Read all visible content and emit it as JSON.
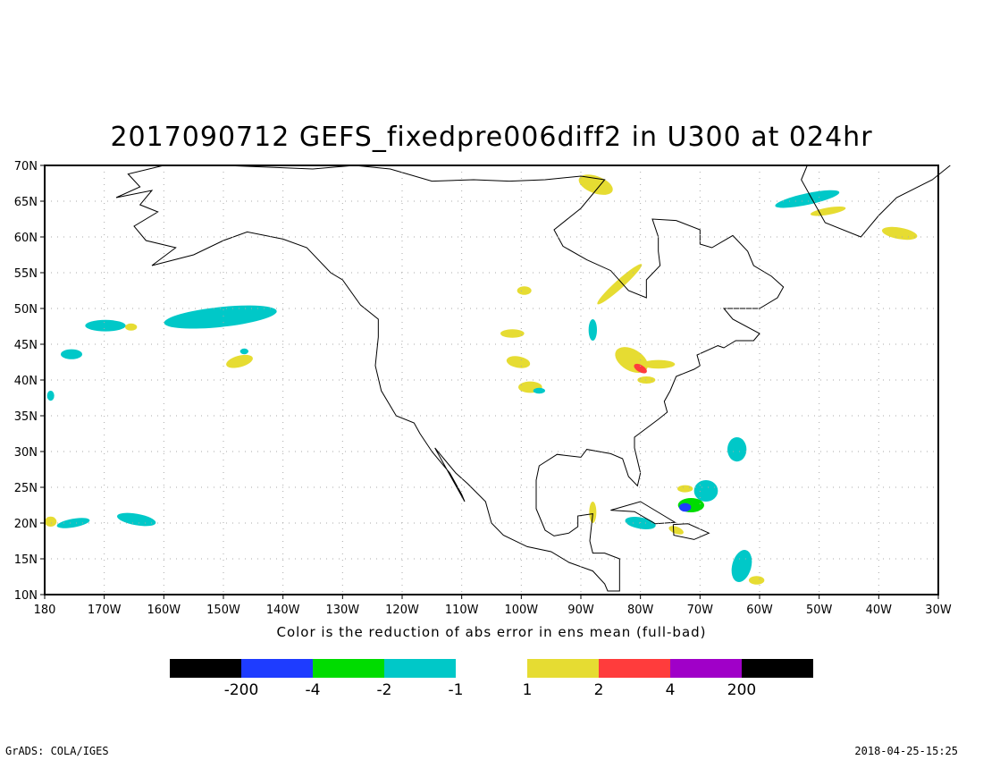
{
  "title": "2017090712 GEFS_fixedpre006diff2 in U300 at 024hr",
  "xlabel": "Color is the reduction of abs error in ens mean (full-bad)",
  "footer_left": "GrADS: COLA/IGES",
  "footer_right": "2018-04-25-15:25",
  "chart_data": {
    "type": "map",
    "lon_range": [
      -180,
      -30
    ],
    "lat_range": [
      10,
      70
    ],
    "lat_ticks": [
      {
        "v": 10,
        "label": "10N"
      },
      {
        "v": 15,
        "label": "15N"
      },
      {
        "v": 20,
        "label": "20N"
      },
      {
        "v": 25,
        "label": "25N"
      },
      {
        "v": 30,
        "label": "30N"
      },
      {
        "v": 35,
        "label": "35N"
      },
      {
        "v": 40,
        "label": "40N"
      },
      {
        "v": 45,
        "label": "45N"
      },
      {
        "v": 50,
        "label": "50N"
      },
      {
        "v": 55,
        "label": "55N"
      },
      {
        "v": 60,
        "label": "60N"
      },
      {
        "v": 65,
        "label": "65N"
      },
      {
        "v": 70,
        "label": "70N"
      }
    ],
    "lon_ticks": [
      {
        "v": -180,
        "label": "180"
      },
      {
        "v": -170,
        "label": "170W"
      },
      {
        "v": -160,
        "label": "160W"
      },
      {
        "v": -150,
        "label": "150W"
      },
      {
        "v": -140,
        "label": "140W"
      },
      {
        "v": -130,
        "label": "130W"
      },
      {
        "v": -120,
        "label": "120W"
      },
      {
        "v": -110,
        "label": "110W"
      },
      {
        "v": -100,
        "label": "100W"
      },
      {
        "v": -90,
        "label": "90W"
      },
      {
        "v": -80,
        "label": "80W"
      },
      {
        "v": -70,
        "label": "70W"
      },
      {
        "v": -60,
        "label": "60W"
      },
      {
        "v": -50,
        "label": "50W"
      },
      {
        "v": -40,
        "label": "40W"
      },
      {
        "v": -30,
        "label": "30W"
      }
    ],
    "colorbar": {
      "colors": [
        "#000000",
        "#1e3cff",
        "#00dc00",
        "#00c8c8",
        null,
        "#e6dc32",
        "#ff3c3c",
        "#a000c8",
        "#000000"
      ],
      "labels": [
        "-200",
        "-4",
        "-2",
        "-1",
        "1",
        "2",
        "4",
        "200"
      ]
    },
    "regions": [
      {
        "lon": -169.8,
        "lat": 47.6,
        "rlon": 3.4,
        "rlat": 0.8,
        "rot": 0,
        "color": "#00c8c8"
      },
      {
        "lon": -165.5,
        "lat": 47.4,
        "rlon": 1,
        "rlat": 0.5,
        "rot": 0,
        "color": "#e6dc32"
      },
      {
        "lon": -150.5,
        "lat": 48.8,
        "rlon": 9.5,
        "rlat": 1.4,
        "rot": -6,
        "color": "#00c8c8"
      },
      {
        "lon": -147.3,
        "lat": 42.6,
        "rlon": 2.3,
        "rlat": 0.8,
        "rot": -15,
        "color": "#e6dc32"
      },
      {
        "lon": -146.5,
        "lat": 44,
        "rlon": 0.7,
        "rlat": 0.4,
        "rot": 0,
        "color": "#00c8c8"
      },
      {
        "lon": -175.5,
        "lat": 43.6,
        "rlon": 1.8,
        "rlat": 0.7,
        "rot": 0,
        "color": "#00c8c8"
      },
      {
        "lon": -179,
        "lat": 37.8,
        "rlon": 0.6,
        "rlat": 0.7,
        "rot": 0,
        "color": "#00c8c8"
      },
      {
        "lon": -175.2,
        "lat": 20,
        "rlon": 2.8,
        "rlat": 0.6,
        "rot": -10,
        "color": "#00c8c8"
      },
      {
        "lon": -164.6,
        "lat": 20.5,
        "rlon": 3.3,
        "rlat": 0.8,
        "rot": 10,
        "color": "#00c8c8"
      },
      {
        "lon": -179,
        "lat": 20.2,
        "rlon": 1,
        "rlat": 0.7,
        "rot": 0,
        "color": "#e6dc32"
      },
      {
        "lon": -87.5,
        "lat": 67.3,
        "rlon": 3,
        "rlat": 1.2,
        "rot": 20,
        "color": "#e6dc32"
      },
      {
        "lon": -83.5,
        "lat": 53.4,
        "rlon": 5,
        "rlat": 0.6,
        "rot": -42,
        "color": "#e6dc32"
      },
      {
        "lon": -99.5,
        "lat": 52.5,
        "rlon": 1.2,
        "rlat": 0.6,
        "rot": 0,
        "color": "#e6dc32"
      },
      {
        "lon": -52,
        "lat": 65.3,
        "rlon": 5.5,
        "rlat": 0.8,
        "rot": -12,
        "color": "#00c8c8"
      },
      {
        "lon": -48.5,
        "lat": 63.6,
        "rlon": 3,
        "rlat": 0.5,
        "rot": -10,
        "color": "#e6dc32"
      },
      {
        "lon": -36.5,
        "lat": 60.5,
        "rlon": 3,
        "rlat": 0.8,
        "rot": 10,
        "color": "#e6dc32"
      },
      {
        "lon": -81.5,
        "lat": 42.8,
        "rlon": 3,
        "rlat": 1.5,
        "rot": 30,
        "color": "#e6dc32"
      },
      {
        "lon": -80,
        "lat": 41.6,
        "rlon": 1.2,
        "rlat": 0.5,
        "rot": 30,
        "color": "#ff3c3c"
      },
      {
        "lon": -77,
        "lat": 42.2,
        "rlon": 2.8,
        "rlat": 0.6,
        "rot": 0,
        "color": "#e6dc32"
      },
      {
        "lon": -88,
        "lat": 47,
        "rlon": 0.7,
        "rlat": 1.5,
        "rot": 0,
        "color": "#00c8c8"
      },
      {
        "lon": -79,
        "lat": 40,
        "rlon": 1.5,
        "rlat": 0.5,
        "rot": 0,
        "color": "#e6dc32"
      },
      {
        "lon": -101.5,
        "lat": 46.5,
        "rlon": 2,
        "rlat": 0.6,
        "rot": 0,
        "color": "#e6dc32"
      },
      {
        "lon": -100.5,
        "lat": 42.5,
        "rlon": 2,
        "rlat": 0.8,
        "rot": 10,
        "color": "#e6dc32"
      },
      {
        "lon": -98.5,
        "lat": 39,
        "rlon": 2,
        "rlat": 0.8,
        "rot": 0,
        "color": "#e6dc32"
      },
      {
        "lon": -97,
        "lat": 38.5,
        "rlon": 1,
        "rlat": 0.4,
        "rot": 0,
        "color": "#00c8c8"
      },
      {
        "lon": -63.8,
        "lat": 30.3,
        "rlon": 1.6,
        "rlat": 1.7,
        "rot": 0,
        "color": "#00c8c8"
      },
      {
        "lon": -69,
        "lat": 24.5,
        "rlon": 2,
        "rlat": 1.5,
        "rot": 0,
        "color": "#00c8c8"
      },
      {
        "lon": -71.5,
        "lat": 22.5,
        "rlon": 2.2,
        "rlat": 1,
        "rot": 0,
        "color": "#00dc00"
      },
      {
        "lon": -72.5,
        "lat": 22.2,
        "rlon": 1,
        "rlat": 0.6,
        "rot": 0,
        "color": "#1e3cff"
      },
      {
        "lon": -72.5,
        "lat": 24.8,
        "rlon": 1.3,
        "rlat": 0.5,
        "rot": 0,
        "color": "#e6dc32"
      },
      {
        "lon": -80,
        "lat": 20,
        "rlon": 2.6,
        "rlat": 0.8,
        "rot": 10,
        "color": "#00c8c8"
      },
      {
        "lon": -74,
        "lat": 19,
        "rlon": 1.3,
        "rlat": 0.5,
        "rot": 20,
        "color": "#e6dc32"
      },
      {
        "lon": -88,
        "lat": 21.5,
        "rlon": 0.6,
        "rlat": 1.5,
        "rot": 0,
        "color": "#e6dc32"
      },
      {
        "lon": -63,
        "lat": 14,
        "rlon": 1.6,
        "rlat": 2.3,
        "rot": 15,
        "color": "#00c8c8"
      },
      {
        "lon": -60.5,
        "lat": 12,
        "rlon": 1.3,
        "rlat": 0.6,
        "rot": 0,
        "color": "#e6dc32"
      }
    ]
  }
}
